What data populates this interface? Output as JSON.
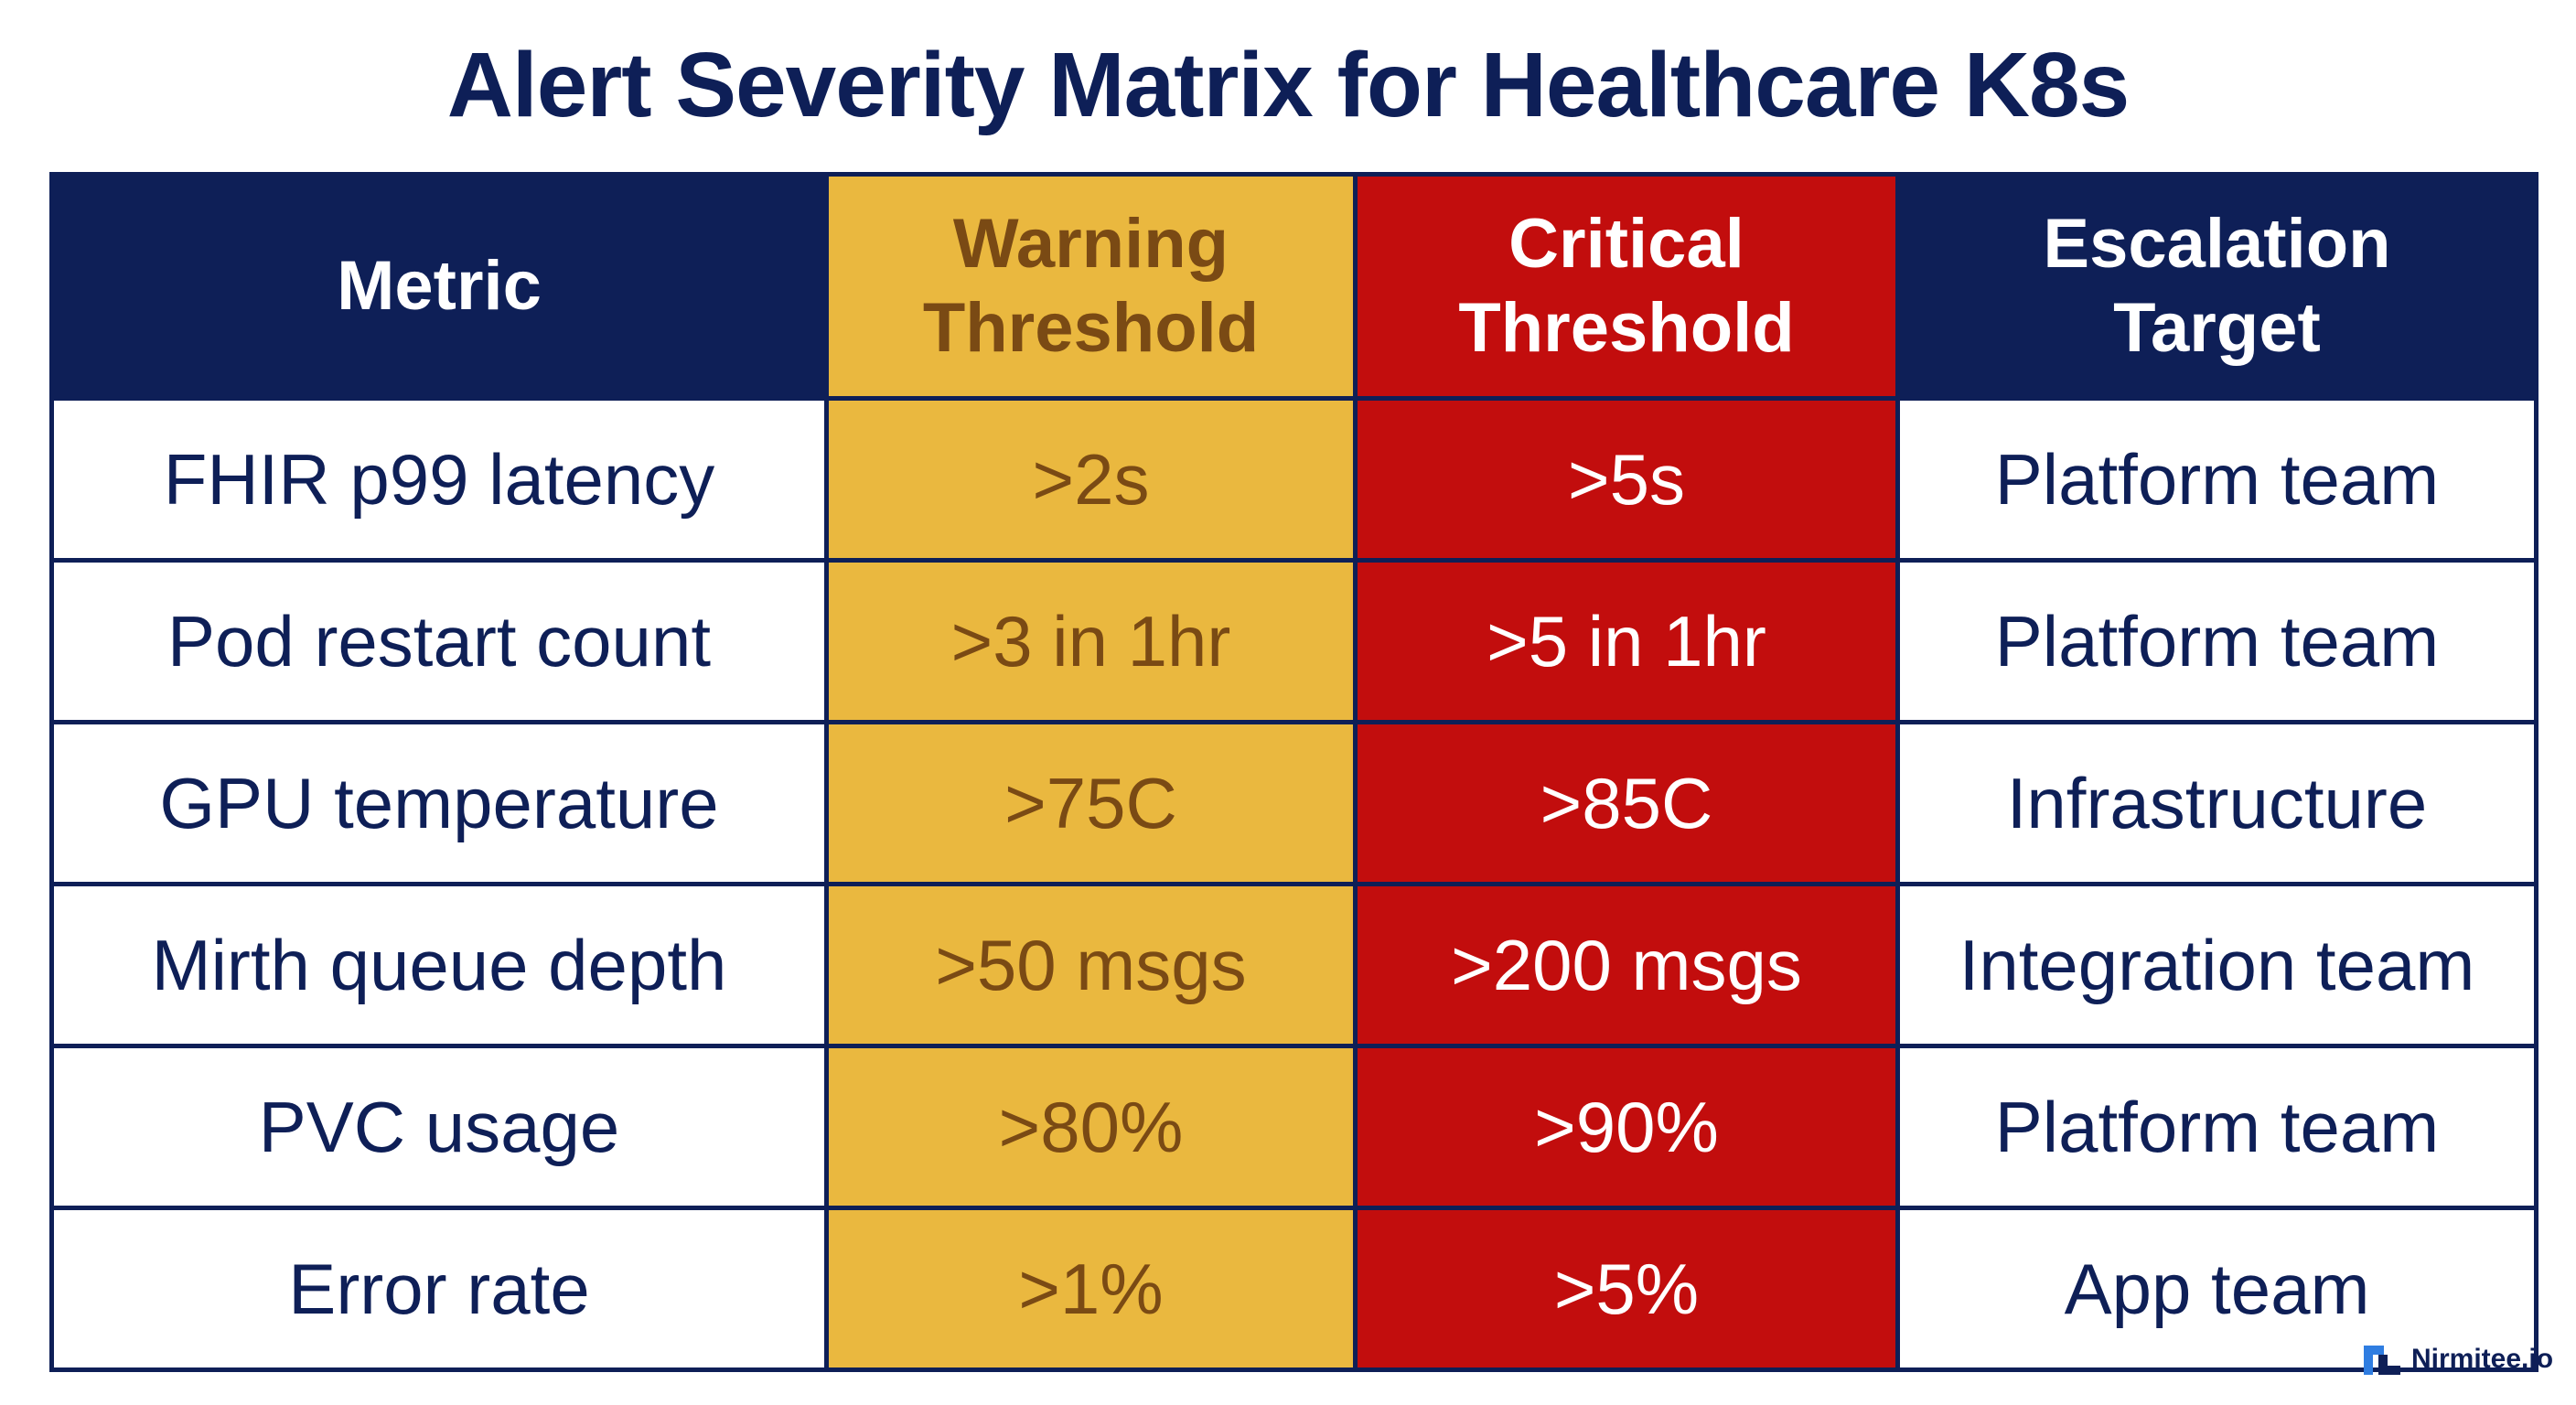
{
  "title": "Alert Severity Matrix for Healthcare K8s",
  "columns": {
    "metric": "Metric",
    "warning": "Warning Threshold",
    "critical": "Critical Threshold",
    "escalation": "Escalation Target"
  },
  "rows": [
    {
      "metric": "FHIR p99 latency",
      "warning": ">2s",
      "critical": ">5s",
      "escalation": "Platform team"
    },
    {
      "metric": "Pod restart count",
      "warning": ">3 in 1hr",
      "critical": ">5 in 1hr",
      "escalation": "Platform team"
    },
    {
      "metric": "GPU temperature",
      "warning": ">75C",
      "critical": ">85C",
      "escalation": "Infrastructure"
    },
    {
      "metric": "Mirth queue depth",
      "warning": ">50 msgs",
      "critical": ">200 msgs",
      "escalation": "Integration team"
    },
    {
      "metric": "PVC usage",
      "warning": ">80%",
      "critical": ">90%",
      "escalation": "Platform team"
    },
    {
      "metric": "Error rate",
      "warning": ">1%",
      "critical": ">5%",
      "escalation": "App team"
    }
  ],
  "brand": {
    "name": "Nirmitee.io",
    "icon": "nirmitee-logo-icon"
  },
  "colors": {
    "navy": "#0e1f57",
    "warning": "#eab83f",
    "warning_text": "#7a4a14",
    "critical": "#c20d0d",
    "background": "#ffffff",
    "brand_blue": "#2f7de1"
  }
}
